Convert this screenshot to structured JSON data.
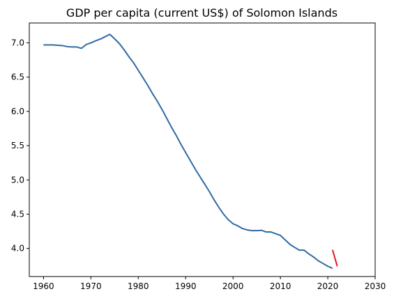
{
  "chart_data": {
    "type": "line",
    "title": "GDP per capita (current US$) of Solomon Islands",
    "xlabel": "",
    "ylabel": "",
    "xlim": [
      1957,
      2030
    ],
    "ylim": [
      3.59,
      7.29
    ],
    "x_ticks": [
      1960,
      1970,
      1980,
      1990,
      2000,
      2010,
      2020,
      2030
    ],
    "y_ticks": [
      4.0,
      4.5,
      5.0,
      5.5,
      6.0,
      6.5,
      7.0
    ],
    "y_tick_labels": [
      "4.0",
      "4.5",
      "5.0",
      "5.5",
      "6.0",
      "6.5",
      "7.0"
    ],
    "grid": false,
    "legend": "none",
    "series": [
      {
        "color": "#2f6aa3",
        "x": [
          1960,
          1961,
          1962,
          1963,
          1964,
          1965,
          1966,
          1967,
          1968,
          1969,
          1970,
          1971,
          1972,
          1973,
          1974,
          1975,
          1976,
          1977,
          1978,
          1979,
          1980,
          1981,
          1982,
          1983,
          1984,
          1985,
          1986,
          1987,
          1988,
          1989,
          1990,
          1991,
          1992,
          1993,
          1994,
          1995,
          1996,
          1997,
          1998,
          1999,
          2000,
          2001,
          2002,
          2003,
          2004,
          2005,
          2006,
          2007,
          2008,
          2009,
          2010,
          2011,
          2012,
          2013,
          2014,
          2015,
          2016,
          2017,
          2018,
          2019,
          2020,
          2021
        ],
        "y": [
          6.97,
          6.97,
          6.97,
          6.965,
          6.96,
          6.945,
          6.94,
          6.94,
          6.92,
          6.975,
          7.0,
          7.03,
          7.055,
          7.09,
          7.125,
          7.06,
          6.99,
          6.9,
          6.8,
          6.71,
          6.6,
          6.49,
          6.38,
          6.26,
          6.15,
          6.03,
          5.9,
          5.77,
          5.65,
          5.52,
          5.4,
          5.28,
          5.16,
          5.05,
          4.94,
          4.83,
          4.71,
          4.6,
          4.5,
          4.42,
          4.36,
          4.33,
          4.29,
          4.27,
          4.26,
          4.26,
          4.265,
          4.24,
          4.24,
          4.215,
          4.19,
          4.125,
          4.06,
          4.015,
          3.975,
          3.975,
          3.92,
          3.875,
          3.82,
          3.78,
          3.74,
          3.71
        ],
        "y_override": [
          6.97,
          6.97,
          6.97,
          6.965,
          6.96,
          6.945,
          6.94,
          6.94,
          6.92,
          6.975,
          7.0,
          7.03,
          7.055,
          7.09,
          7.125,
          7.06,
          6.99,
          6.9,
          6.8,
          6.71,
          6.6,
          6.49,
          6.38,
          6.26,
          6.15,
          6.03,
          5.9,
          5.77,
          5.65,
          5.52,
          5.4,
          5.28,
          5.16,
          5.05,
          4.94,
          4.83,
          4.71,
          4.6,
          4.5,
          4.42,
          4.36,
          4.33,
          4.29,
          4.27,
          4.26,
          4.26,
          4.265,
          4.24,
          4.24,
          4.215,
          4.19,
          4.125,
          4.06,
          4.015,
          3.975,
          3.975,
          3.92,
          3.875,
          3.82,
          3.78,
          3.74,
          3.71
        ]
      },
      {
        "color": "#e8141c",
        "x": [
          2021,
          2022
        ],
        "y": [
          3.98,
          3.74
        ]
      }
    ]
  }
}
